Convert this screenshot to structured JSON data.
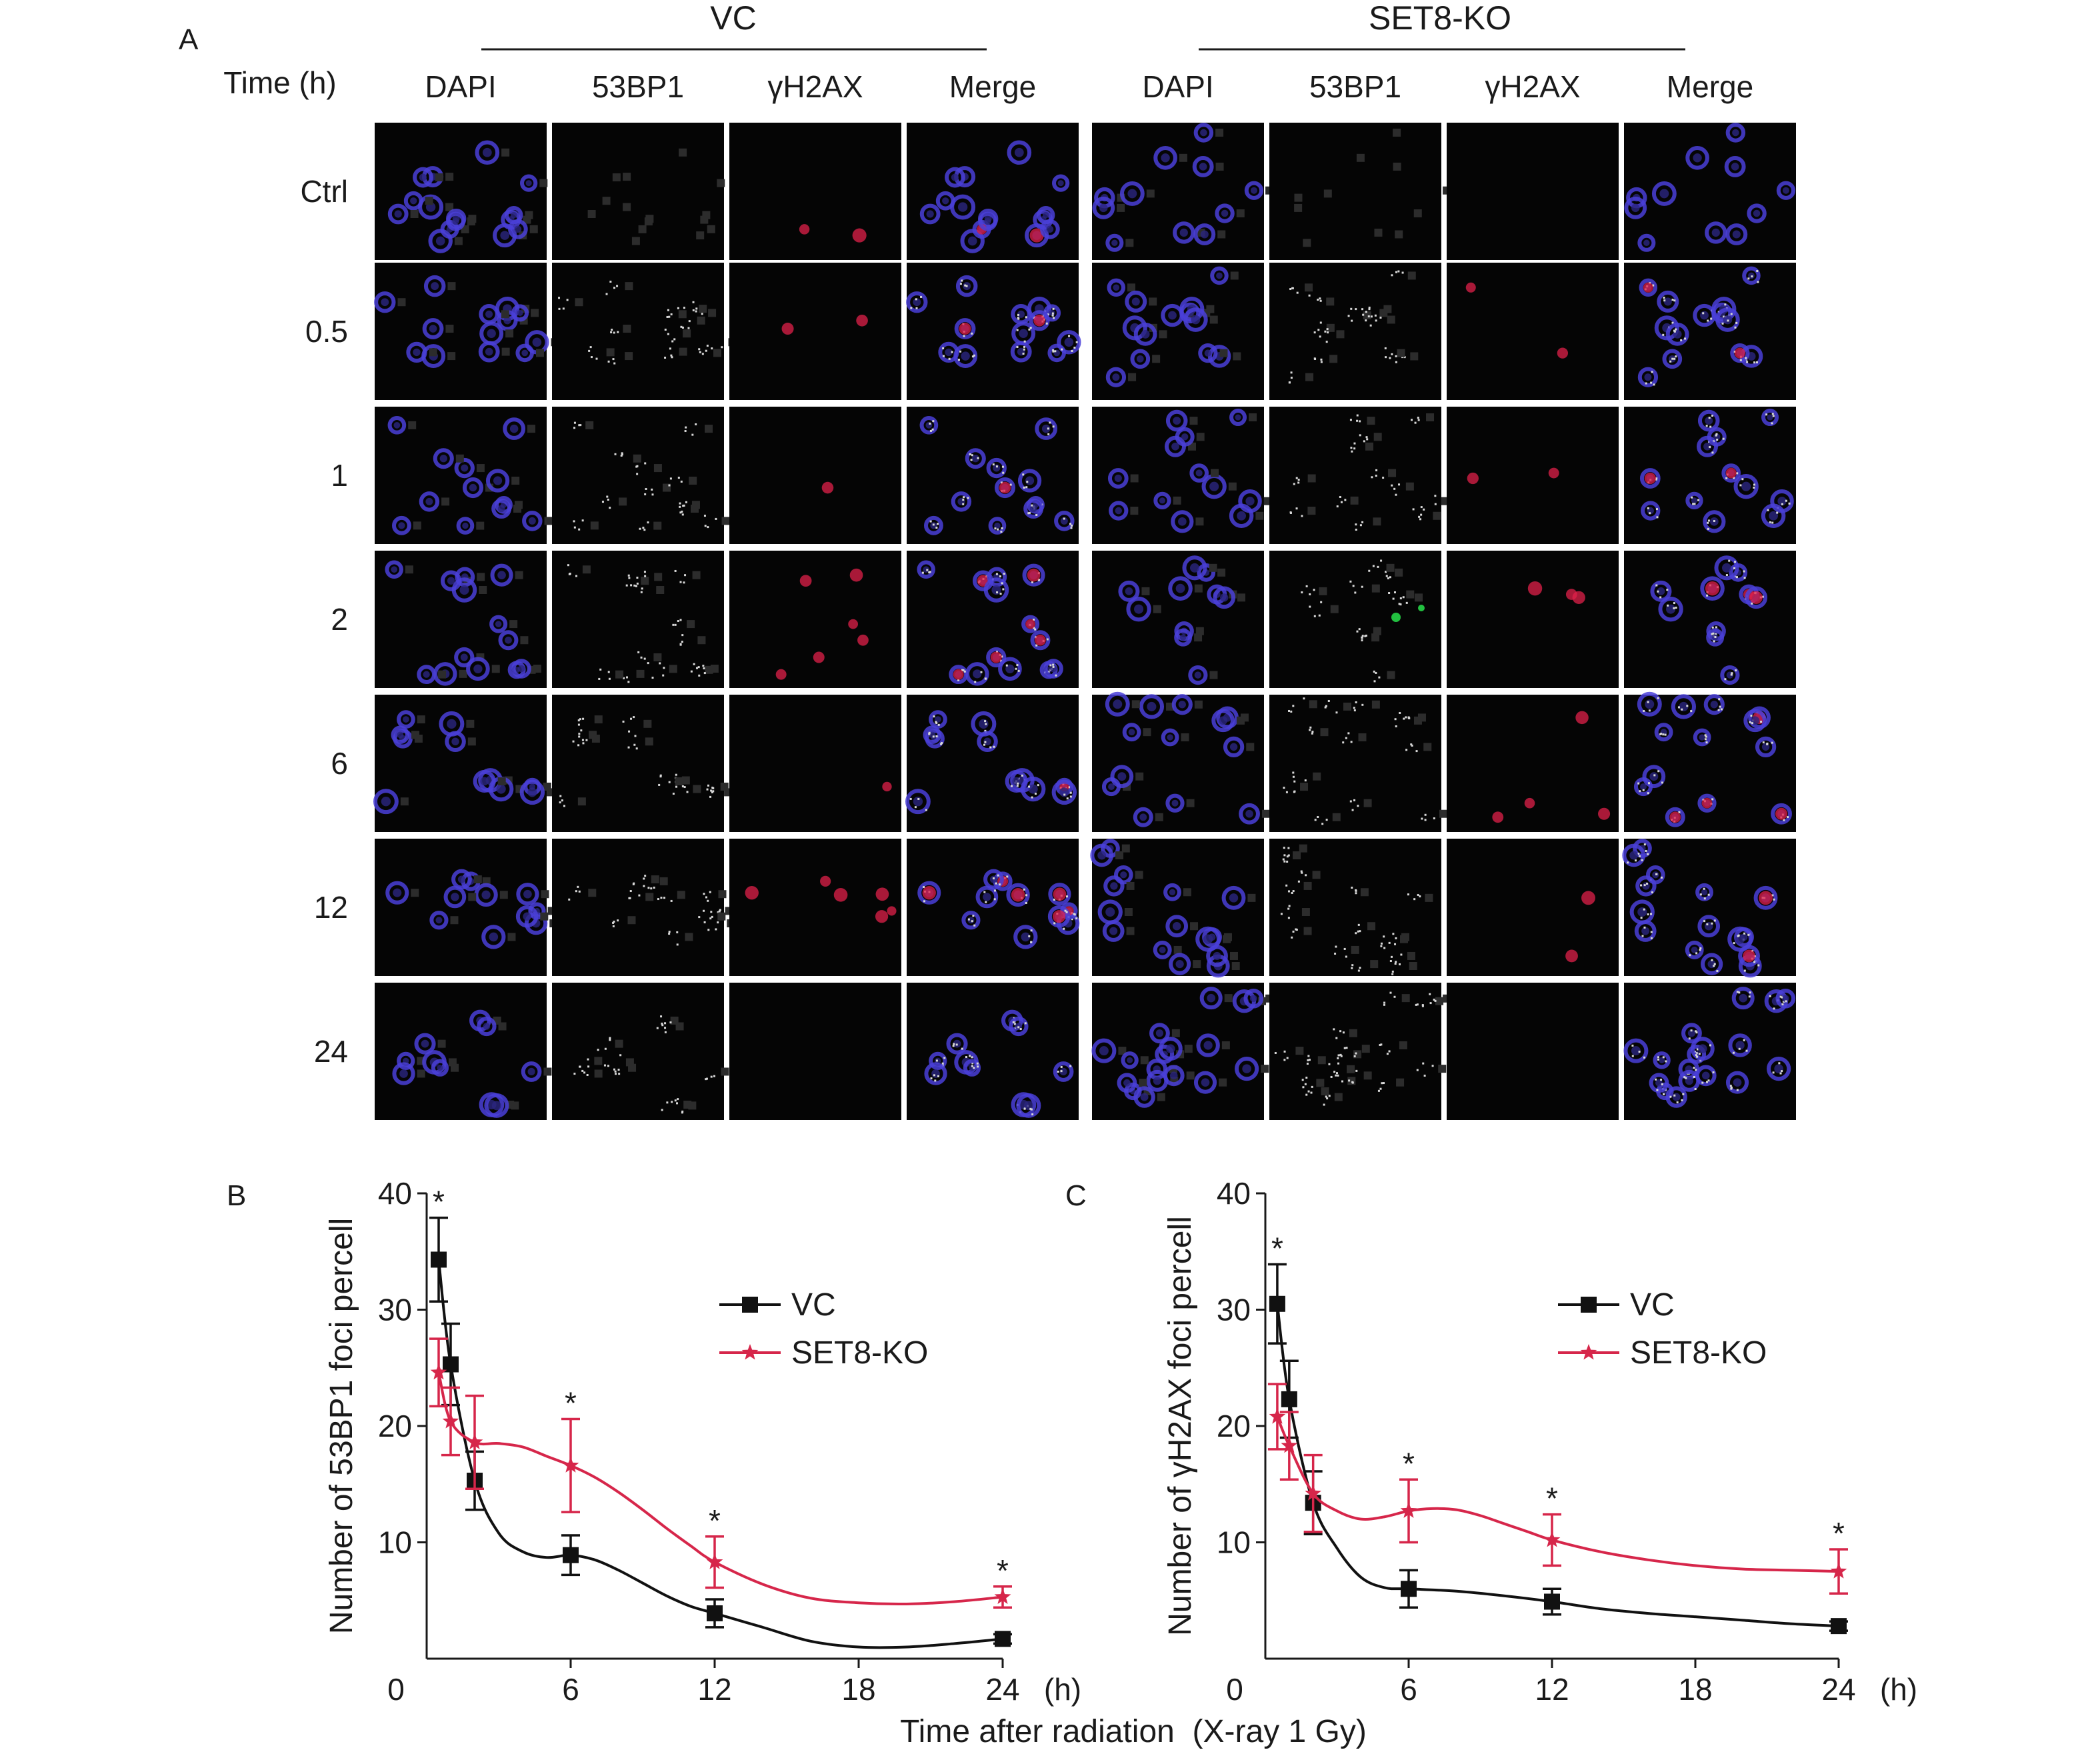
{
  "panel_a": {
    "letter": "A",
    "time_header": "Time (h)",
    "groups": [
      {
        "name": "VC",
        "channels": [
          "DAPI",
          "53BP1",
          "γH2AX",
          "Merge"
        ]
      },
      {
        "name": "SET8-KO",
        "channels": [
          "DAPI",
          "53BP1",
          "γH2AX",
          "Merge"
        ]
      }
    ],
    "rows": [
      "Ctrl",
      "0.5",
      "1",
      "2",
      "6",
      "12",
      "24"
    ],
    "colors": {
      "image_background": "#050505",
      "dapi": "#4a3fd8",
      "foci": "#d8d8d8",
      "gamma": "#e0204a",
      "green_foci": "#22c040"
    }
  },
  "shared_xlabel": "Time after radiation  (X-ray 1 Gy)",
  "chart_data": [
    {
      "panel_label": "B",
      "type": "line",
      "ylabel": "Number of 53BP1 foci percell",
      "xlabel": "",
      "x_unit_label": "(h)",
      "xlim": [
        0,
        24
      ],
      "ylim": [
        0,
        40
      ],
      "x_ticks": [
        0,
        6,
        12,
        18,
        24
      ],
      "y_ticks": [
        10,
        20,
        30,
        40
      ],
      "legend_position": "top-right",
      "series": [
        {
          "name": "VC",
          "color": "#111111",
          "marker": "square",
          "x": [
            0.5,
            1,
            2,
            6,
            12,
            24
          ],
          "y": [
            34.3,
            25.3,
            15.3,
            8.9,
            3.9,
            1.7
          ],
          "error": [
            3.6,
            3.5,
            2.5,
            1.7,
            1.2,
            0.4
          ],
          "significance": [
            "*",
            "",
            "",
            "",
            "",
            ""
          ],
          "curve": [
            [
              0.5,
              34.3
            ],
            [
              1,
              25.3
            ],
            [
              2,
              15.3
            ],
            [
              3,
              10.8
            ],
            [
              4,
              9.2
            ],
            [
              5,
              8.7
            ],
            [
              6,
              8.9
            ],
            [
              7,
              8.5
            ],
            [
              8,
              7.6
            ],
            [
              9,
              6.5
            ],
            [
              10,
              5.4
            ],
            [
              11,
              4.5
            ],
            [
              12,
              3.9
            ],
            [
              14,
              2.7
            ],
            [
              16,
              1.5
            ],
            [
              18,
              1.0
            ],
            [
              20,
              1.0
            ],
            [
              22,
              1.3
            ],
            [
              24,
              1.7
            ]
          ]
        },
        {
          "name": "SET8-KO",
          "color": "#d6264a",
          "marker": "star",
          "x": [
            0.5,
            1,
            2,
            6,
            12,
            24
          ],
          "y": [
            24.6,
            20.4,
            18.6,
            16.6,
            8.3,
            5.3
          ],
          "error": [
            2.9,
            2.9,
            4.0,
            4.0,
            2.2,
            0.9
          ],
          "significance": [
            "",
            "",
            "",
            "*",
            "*",
            "*"
          ],
          "curve": [
            [
              0.5,
              24.6
            ],
            [
              1,
              20.4
            ],
            [
              2,
              18.6
            ],
            [
              3,
              18.5
            ],
            [
              4,
              18.2
            ],
            [
              5,
              17.4
            ],
            [
              6,
              16.6
            ],
            [
              7,
              15.6
            ],
            [
              8,
              14.3
            ],
            [
              9,
              12.8
            ],
            [
              10,
              11.2
            ],
            [
              11,
              9.7
            ],
            [
              12,
              8.3
            ],
            [
              14,
              6.4
            ],
            [
              16,
              5.2
            ],
            [
              18,
              4.8
            ],
            [
              20,
              4.7
            ],
            [
              22,
              4.9
            ],
            [
              24,
              5.3
            ]
          ]
        }
      ]
    },
    {
      "panel_label": "C",
      "type": "line",
      "ylabel": "Number of γH2AX foci percell",
      "xlabel": "",
      "x_unit_label": "(h)",
      "xlim": [
        0,
        24
      ],
      "ylim": [
        0,
        40
      ],
      "x_ticks": [
        0,
        6,
        12,
        18,
        24
      ],
      "y_ticks": [
        10,
        20,
        30,
        40
      ],
      "legend_position": "top-right",
      "series": [
        {
          "name": "VC",
          "color": "#111111",
          "marker": "square",
          "x": [
            0.5,
            1,
            2,
            6,
            12,
            24
          ],
          "y": [
            30.5,
            22.3,
            13.4,
            6.0,
            4.9,
            2.8
          ],
          "error": [
            3.4,
            3.3,
            2.7,
            1.6,
            1.1,
            0.4
          ],
          "significance": [
            "*",
            "",
            "",
            "",
            "",
            ""
          ],
          "curve": [
            [
              0.5,
              30.5
            ],
            [
              1,
              22.3
            ],
            [
              2,
              13.4
            ],
            [
              3,
              9.5
            ],
            [
              4,
              7.0
            ],
            [
              5,
              6.1
            ],
            [
              6,
              6.0
            ],
            [
              8,
              5.8
            ],
            [
              10,
              5.4
            ],
            [
              12,
              4.9
            ],
            [
              14,
              4.3
            ],
            [
              16,
              3.9
            ],
            [
              18,
              3.6
            ],
            [
              20,
              3.3
            ],
            [
              22,
              3.0
            ],
            [
              24,
              2.8
            ]
          ]
        },
        {
          "name": "SET8-KO",
          "color": "#d6264a",
          "marker": "star",
          "x": [
            0.5,
            1,
            2,
            6,
            12,
            24
          ],
          "y": [
            20.8,
            18.3,
            14.2,
            12.7,
            10.2,
            7.5
          ],
          "error": [
            2.8,
            2.9,
            3.3,
            2.7,
            2.2,
            1.9
          ],
          "significance": [
            "",
            "",
            "",
            "*",
            "*",
            "*"
          ],
          "curve": [
            [
              0.5,
              20.8
            ],
            [
              1,
              18.3
            ],
            [
              2,
              14.2
            ],
            [
              3,
              12.7
            ],
            [
              4,
              12.0
            ],
            [
              5,
              12.2
            ],
            [
              6,
              12.7
            ],
            [
              7,
              12.9
            ],
            [
              8,
              12.8
            ],
            [
              9,
              12.3
            ],
            [
              10,
              11.6
            ],
            [
              11,
              10.9
            ],
            [
              12,
              10.2
            ],
            [
              14,
              9.2
            ],
            [
              16,
              8.5
            ],
            [
              18,
              8.0
            ],
            [
              20,
              7.7
            ],
            [
              22,
              7.6
            ],
            [
              24,
              7.5
            ]
          ]
        }
      ]
    }
  ]
}
